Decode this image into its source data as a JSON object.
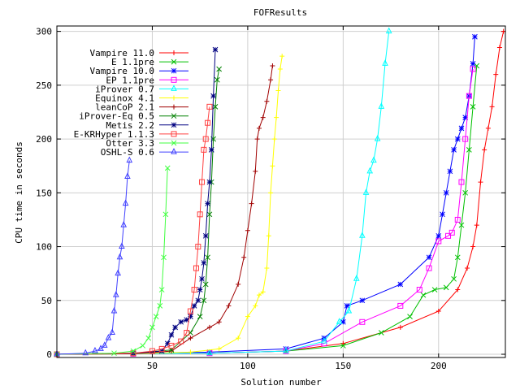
{
  "chart_data": {
    "type": "line",
    "title": "FOFResults",
    "xlabel": "Solution number",
    "ylabel": "CPU time in seconds",
    "xlim": [
      0,
      235
    ],
    "ylim": [
      -3,
      305
    ],
    "xticks": [
      50,
      100,
      150,
      200
    ],
    "yticks": [
      0,
      50,
      100,
      150,
      200,
      250,
      300
    ],
    "grid": true,
    "legend_position": "top-left",
    "series": [
      {
        "name": "Vampire 11.0",
        "color": "#ff0000",
        "marker": "plus",
        "x": [
          0,
          40,
          80,
          120,
          150,
          180,
          200,
          210,
          215,
          218,
          220,
          222,
          224,
          226,
          228,
          230,
          232,
          234
        ],
        "y": [
          0,
          0.5,
          1,
          3,
          10,
          25,
          40,
          60,
          80,
          100,
          120,
          160,
          190,
          210,
          230,
          260,
          285,
          300
        ]
      },
      {
        "name": "E 1.1pre",
        "color": "#00c000",
        "marker": "cross",
        "x": [
          0,
          40,
          80,
          120,
          150,
          170,
          185,
          192,
          198,
          204,
          208,
          210,
          212,
          214,
          216,
          218,
          220
        ],
        "y": [
          0,
          0.5,
          1,
          3,
          8,
          20,
          35,
          55,
          60,
          62,
          70,
          90,
          120,
          150,
          190,
          230,
          268
        ]
      },
      {
        "name": "Vampire 10.0",
        "color": "#0000ff",
        "marker": "star",
        "x": [
          0,
          40,
          80,
          120,
          140,
          150,
          152,
          160,
          180,
          195,
          200,
          202,
          204,
          206,
          208,
          210,
          212,
          214,
          216,
          218,
          219
        ],
        "y": [
          0,
          1,
          2,
          5,
          15,
          30,
          45,
          50,
          65,
          90,
          110,
          130,
          150,
          170,
          190,
          200,
          210,
          220,
          240,
          270,
          295
        ]
      },
      {
        "name": "EP 1.1pre",
        "color": "#ff00ff",
        "marker": "square",
        "x": [
          0,
          40,
          80,
          120,
          140,
          160,
          180,
          190,
          195,
          200,
          205,
          207,
          210,
          212,
          214,
          216,
          218
        ],
        "y": [
          0,
          0.5,
          1,
          3,
          10,
          30,
          45,
          60,
          80,
          105,
          110,
          113,
          125,
          160,
          200,
          240,
          265
        ]
      },
      {
        "name": "iProver 0.7",
        "color": "#00ffff",
        "marker": "tri",
        "x": [
          0,
          40,
          80,
          120,
          140,
          148,
          153,
          157,
          160,
          162,
          164,
          166,
          168,
          170,
          172,
          174
        ],
        "y": [
          0,
          0.5,
          1,
          3,
          12,
          30,
          40,
          70,
          110,
          150,
          170,
          180,
          200,
          230,
          270,
          300
        ]
      },
      {
        "name": "Equinox 4.1",
        "color": "#ffff00",
        "marker": "plus",
        "x": [
          0,
          40,
          70,
          85,
          95,
          100,
          104,
          106,
          108,
          110,
          111,
          112,
          113,
          114,
          115,
          116,
          117,
          118
        ],
        "y": [
          0,
          0.5,
          2,
          5,
          15,
          35,
          45,
          55,
          58,
          80,
          110,
          150,
          175,
          200,
          220,
          245,
          265,
          277
        ]
      },
      {
        "name": "leanCoP 2.1",
        "color": "#a00000",
        "marker": "plus",
        "x": [
          0,
          40,
          60,
          70,
          80,
          85,
          90,
          95,
          98,
          100,
          102,
          104,
          105,
          106,
          108,
          110,
          112,
          113
        ],
        "y": [
          0,
          0.5,
          3,
          15,
          25,
          30,
          45,
          65,
          90,
          115,
          140,
          170,
          200,
          210,
          220,
          235,
          255,
          268
        ]
      },
      {
        "name": "iProver-Eq 0.5",
        "color": "#008000",
        "marker": "cross",
        "x": [
          0,
          40,
          60,
          70,
          75,
          77,
          78,
          79,
          80,
          81,
          82,
          83,
          84,
          85
        ],
        "y": [
          0,
          1,
          4,
          20,
          35,
          50,
          65,
          90,
          130,
          160,
          200,
          230,
          255,
          265
        ]
      },
      {
        "name": "Metis 2.2",
        "color": "#000080",
        "marker": "star",
        "x": [
          0,
          40,
          55,
          58,
          60,
          62,
          65,
          68,
          70,
          72,
          74,
          75,
          76,
          77,
          78,
          79,
          80,
          81,
          82,
          83
        ],
        "y": [
          0,
          1,
          3,
          10,
          18,
          25,
          30,
          32,
          35,
          45,
          50,
          60,
          70,
          85,
          110,
          140,
          160,
          190,
          240,
          283
        ]
      },
      {
        "name": "E-KRHyper 1.1.3",
        "color": "#ff4040",
        "marker": "square",
        "x": [
          0,
          40,
          50,
          55,
          60,
          65,
          68,
          70,
          72,
          73,
          74,
          75,
          76,
          77,
          78,
          79,
          80
        ],
        "y": [
          0,
          1,
          3,
          5,
          8,
          12,
          20,
          40,
          60,
          80,
          100,
          130,
          160,
          190,
          200,
          215,
          230
        ]
      },
      {
        "name": "Otter 3.3",
        "color": "#40ff40",
        "marker": "cross",
        "x": [
          0,
          30,
          40,
          45,
          48,
          50,
          52,
          54,
          55,
          56,
          57,
          58
        ],
        "y": [
          0,
          1,
          3,
          8,
          15,
          25,
          35,
          45,
          60,
          90,
          130,
          173
        ]
      },
      {
        "name": "OSHL-S 0.6",
        "color": "#4040ff",
        "marker": "tri",
        "x": [
          0,
          15,
          20,
          23,
          25,
          27,
          29,
          30,
          31,
          32,
          33,
          34,
          35,
          36,
          37,
          38
        ],
        "y": [
          0,
          1,
          3,
          5,
          8,
          15,
          20,
          40,
          55,
          75,
          90,
          100,
          120,
          140,
          165,
          180
        ]
      }
    ]
  }
}
